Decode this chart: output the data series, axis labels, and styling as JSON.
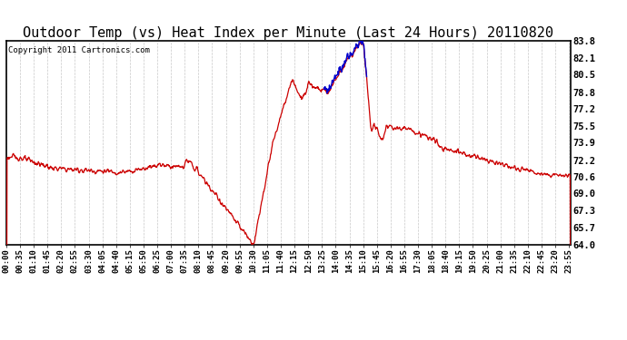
{
  "title": "Outdoor Temp (vs) Heat Index per Minute (Last 24 Hours) 20110820",
  "copyright": "Copyright 2011 Cartronics.com",
  "ylabel_right_ticks": [
    64.0,
    65.7,
    67.3,
    69.0,
    70.6,
    72.2,
    73.9,
    75.5,
    77.2,
    78.8,
    80.5,
    82.1,
    83.8
  ],
  "ylim": [
    64.0,
    83.8
  ],
  "background_color": "#ffffff",
  "grid_color": "#c8c8c8",
  "line_color_red": "#cc0000",
  "line_color_blue": "#0000cc",
  "title_fontsize": 11,
  "copyright_fontsize": 6.5,
  "tick_fontsize": 6.5,
  "ytick_fontsize": 7.5
}
